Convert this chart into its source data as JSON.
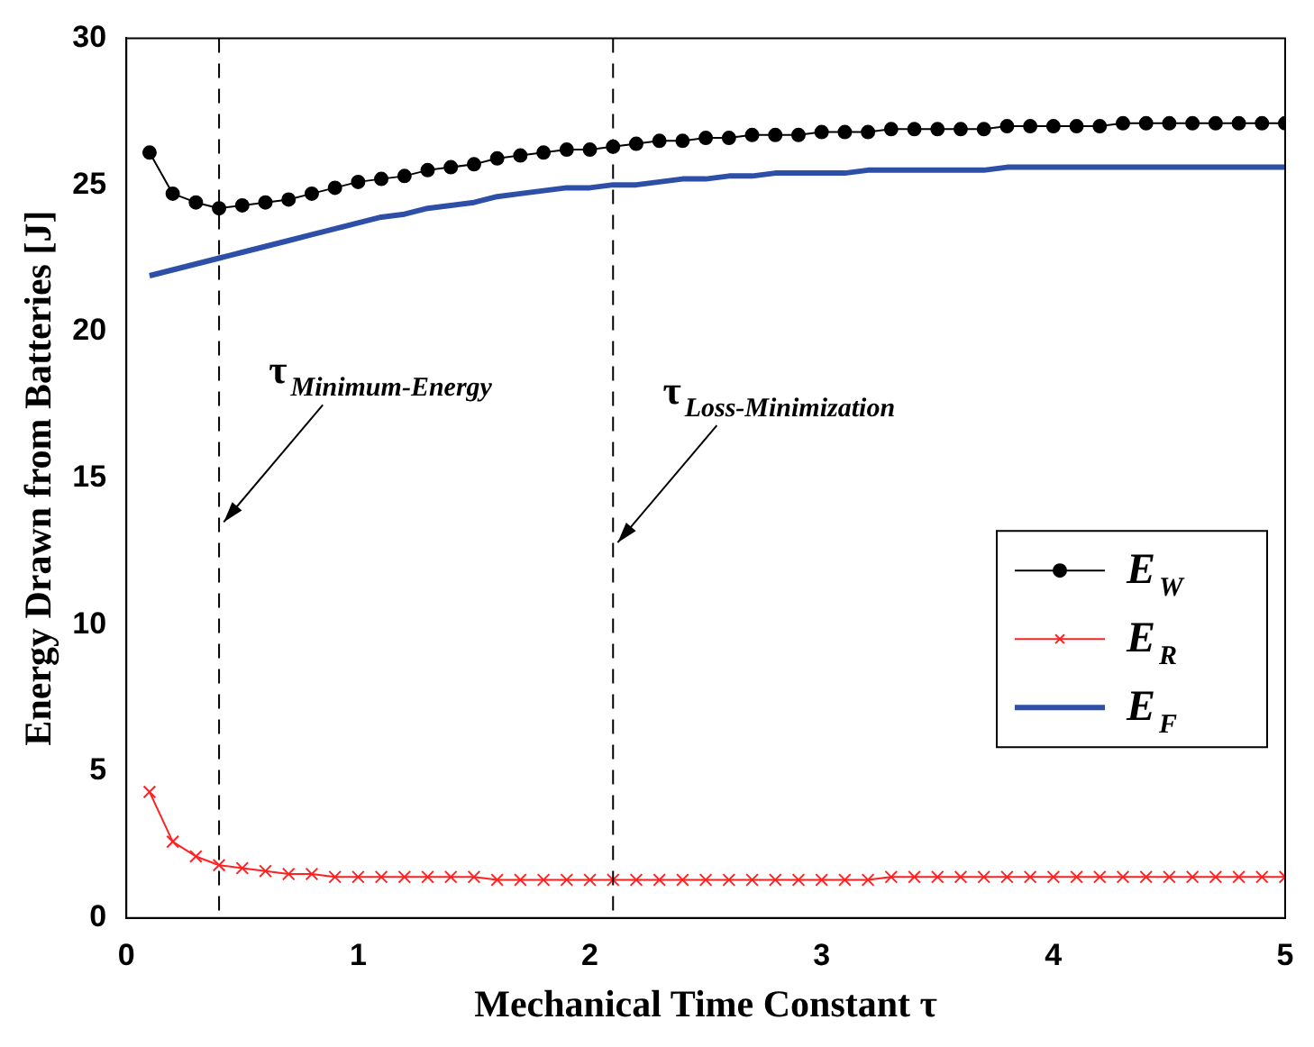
{
  "chart_data": {
    "type": "line",
    "xlabel": "Mechanical Time Constant τ",
    "ylabel": "Energy Drawn from Batteries [J]",
    "x": [
      0.1,
      0.2,
      0.3,
      0.4,
      0.5,
      0.6,
      0.7,
      0.8,
      0.9,
      1.0,
      1.1,
      1.2,
      1.3,
      1.4,
      1.5,
      1.6,
      1.7,
      1.8,
      1.9,
      2.0,
      2.1,
      2.2,
      2.3,
      2.4,
      2.5,
      2.6,
      2.7,
      2.8,
      2.9,
      3.0,
      3.1,
      3.2,
      3.3,
      3.4,
      3.5,
      3.6,
      3.7,
      3.8,
      3.9,
      4.0,
      4.1,
      4.2,
      4.3,
      4.4,
      4.5,
      4.6,
      4.7,
      4.8,
      4.9,
      5.0
    ],
    "series": [
      {
        "name": "E$_{W}$",
        "color": "#000000",
        "marker": "circle",
        "values": [
          26.1,
          24.7,
          24.4,
          24.2,
          24.3,
          24.4,
          24.5,
          24.7,
          24.9,
          25.1,
          25.2,
          25.3,
          25.5,
          25.6,
          25.7,
          25.9,
          26.0,
          26.1,
          26.2,
          26.2,
          26.3,
          26.4,
          26.5,
          26.5,
          26.6,
          26.6,
          26.7,
          26.7,
          26.7,
          26.8,
          26.8,
          26.8,
          26.9,
          26.9,
          26.9,
          26.9,
          26.9,
          27.0,
          27.0,
          27.0,
          27.0,
          27.0,
          27.1,
          27.1,
          27.1,
          27.1,
          27.1,
          27.1,
          27.1,
          27.1
        ]
      },
      {
        "name": "E$_{R}$",
        "color": "#ff2020",
        "marker": "cross",
        "values": [
          4.3,
          2.6,
          2.1,
          1.8,
          1.7,
          1.6,
          1.5,
          1.5,
          1.4,
          1.4,
          1.4,
          1.4,
          1.4,
          1.4,
          1.4,
          1.3,
          1.3,
          1.3,
          1.3,
          1.3,
          1.3,
          1.3,
          1.3,
          1.3,
          1.3,
          1.3,
          1.3,
          1.3,
          1.3,
          1.3,
          1.3,
          1.3,
          1.4,
          1.4,
          1.4,
          1.4,
          1.4,
          1.4,
          1.4,
          1.4,
          1.4,
          1.4,
          1.4,
          1.4,
          1.4,
          1.4,
          1.4,
          1.4,
          1.4,
          1.4
        ]
      },
      {
        "name": "E$_{F}$",
        "color": "#2e4fa8",
        "marker": "none",
        "values": [
          21.9,
          22.1,
          22.3,
          22.5,
          22.7,
          22.9,
          23.1,
          23.3,
          23.5,
          23.7,
          23.9,
          24.0,
          24.2,
          24.3,
          24.4,
          24.6,
          24.7,
          24.8,
          24.9,
          24.9,
          25.0,
          25.0,
          25.1,
          25.2,
          25.2,
          25.3,
          25.3,
          25.4,
          25.4,
          25.4,
          25.4,
          25.5,
          25.5,
          25.5,
          25.5,
          25.5,
          25.5,
          25.6,
          25.6,
          25.6,
          25.6,
          25.6,
          25.6,
          25.6,
          25.6,
          25.6,
          25.6,
          25.6,
          25.6,
          25.6
        ]
      }
    ],
    "xlim": [
      0,
      5
    ],
    "xticks": [
      0,
      1,
      2,
      3,
      4,
      5
    ],
    "ylim": [
      0,
      30
    ],
    "yticks": [
      0,
      5,
      10,
      15,
      20,
      25,
      30
    ],
    "ref_lines": [
      {
        "axis": "x",
        "value": 0.4,
        "color": "#000000",
        "line_style": "dashed"
      },
      {
        "axis": "x",
        "value": 2.1,
        "color": "#000000",
        "line_style": "dashed"
      }
    ],
    "annotations": [
      {
        "text": "τ$_{Minimum-Energy}$",
        "x": 0.42,
        "y": 13.5
      },
      {
        "text": "τ$_{Loss-Minimization}$",
        "x": 2.12,
        "y": 12.8
      }
    ],
    "legend": "right",
    "grid": false
  }
}
